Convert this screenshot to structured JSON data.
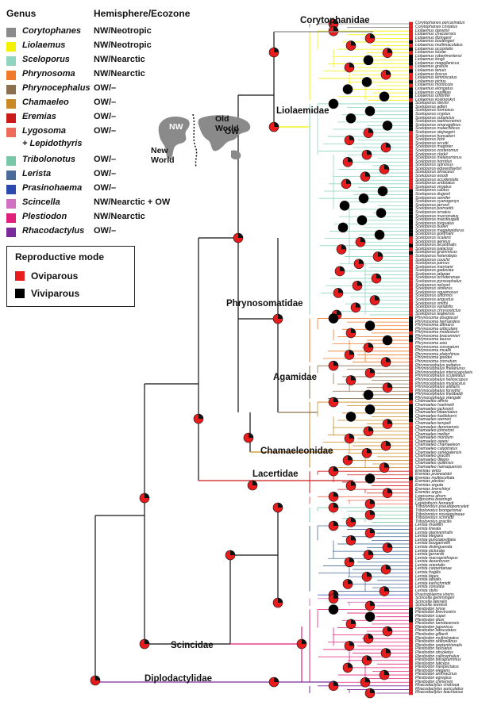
{
  "legend": {
    "genus_header": "Genus",
    "eco_header": "Hemisphere/Ecozone",
    "items": [
      {
        "genus": "Corytophanes",
        "eco": "NW/Neotropic",
        "color": "#8a8a8a"
      },
      {
        "genus": "Liolaemus",
        "eco": "NW/Neotropic",
        "color": "#f5f000"
      },
      {
        "genus": "Sceloporus",
        "eco": "NW/Nearctic",
        "color": "#8fd5c0"
      },
      {
        "genus": "Phrynosoma",
        "eco": "NW/Nearctic",
        "color": "#f07a2a"
      },
      {
        "genus": "Phrynocephalus",
        "eco": "OW/–",
        "color": "#8b7050"
      },
      {
        "genus": "Chamaeleo",
        "eco": "OW/–",
        "color": "#c98a25"
      },
      {
        "genus": "Eremias",
        "eco": "OW/–",
        "color": "#cc1a1a"
      },
      {
        "genus": "Lygosoma",
        "genus2": "+ Lepidothyris",
        "eco": "OW/–",
        "color": "#ee6a5a"
      },
      {
        "genus": "Tribolonotus",
        "eco": "OW/–",
        "color": "#78c8a8"
      },
      {
        "genus": "Lerista",
        "eco": "OW/–",
        "color": "#4a6c98"
      },
      {
        "genus": "Prasinohaema",
        "eco": "OW/–",
        "color": "#2a4ab0"
      },
      {
        "genus": "Scincella",
        "eco": "NW/Nearctic + OW",
        "color": "#d070c0"
      },
      {
        "genus": "Plestiodon",
        "eco": "NW/Nearctic",
        "color": "#e0207a"
      },
      {
        "genus": "Rhacodactylus",
        "eco": "OW/–",
        "color": "#7a2a9a"
      }
    ]
  },
  "reproductive_mode": {
    "title": "Reproductive mode",
    "oviparous": "Oviparous",
    "viviparous": "Viviparous",
    "ovi_color": "#e81c1c",
    "vivi_color": "#000000"
  },
  "map": {
    "nw": "NW",
    "new_world": "New\nWorld",
    "old_world": "Old World",
    "ow": "OW"
  },
  "families": {
    "corytophanidae": "Corytophanidae",
    "liolaemidae": "Liolaemidae",
    "phrynosomatidae": "Phrynosomatidae",
    "agamidae": "Agamidae",
    "chamaeleonidae": "Chamaeleonidae",
    "lacertidae": "Lacertidae",
    "scincidae": "Scincidae",
    "diplodactylidae": "Diplodactylidae"
  },
  "species": [
    {
      "n": "Corytophanes percarinatus",
      "g": 0,
      "m": 0
    },
    {
      "n": "Corytophanes cristatus",
      "g": 0,
      "m": 0
    },
    {
      "n": "Liolaemus darwinii",
      "g": 1,
      "m": 0
    },
    {
      "n": "Liolaemus chacoensis",
      "g": 1,
      "m": 0
    },
    {
      "n": "Liolaemus fitzingerii",
      "g": 1,
      "m": 0
    },
    {
      "n": "Liolaemus boulengeri",
      "g": 1,
      "m": 1
    },
    {
      "n": "Liolaemus multimaculatus",
      "g": 1,
      "m": 0
    },
    {
      "n": "Liolaemus occipitalis",
      "g": 1,
      "m": 1
    },
    {
      "n": "Liolaemus lutzae",
      "g": 1,
      "m": 0
    },
    {
      "n": "Liolaemus robertmertensi",
      "g": 1,
      "m": 1
    },
    {
      "n": "Liolaemus kingii",
      "g": 1,
      "m": 1
    },
    {
      "n": "Liolaemus magellanicus",
      "g": 1,
      "m": 1
    },
    {
      "n": "Liolaemus gracilis",
      "g": 1,
      "m": 0
    },
    {
      "n": "Liolaemus tenuis",
      "g": 1,
      "m": 1
    },
    {
      "n": "Liolaemus fuscus",
      "g": 1,
      "m": 0
    },
    {
      "n": "Liolaemus lemniscatus",
      "g": 1,
      "m": 0
    },
    {
      "n": "Liolaemus pictus",
      "g": 1,
      "m": 1
    },
    {
      "n": "Liolaemus monticola",
      "g": 1,
      "m": 0
    },
    {
      "n": "Liolaemus elongatus",
      "g": 1,
      "m": 1
    },
    {
      "n": "Liolaemus capillitas",
      "g": 1,
      "m": 1
    },
    {
      "n": "Liolaemus umbrifer",
      "g": 1,
      "m": 1
    },
    {
      "n": "Liolaemus koslowskyi",
      "g": 1,
      "m": 0
    },
    {
      "n": "Sceloporus slevini",
      "g": 2,
      "m": 1
    },
    {
      "n": "Sceloporus adleri",
      "g": 2,
      "m": 1
    },
    {
      "n": "Sceloporus formosus",
      "g": 2,
      "m": 1
    },
    {
      "n": "Sceloporus cryptus",
      "g": 2,
      "m": 1
    },
    {
      "n": "Sceloporus subpictus",
      "g": 2,
      "m": 1
    },
    {
      "n": "Sceloporus taeniocnemis",
      "g": 2,
      "m": 1
    },
    {
      "n": "Sceloporus smaragdinus",
      "g": 2,
      "m": 1
    },
    {
      "n": "Sceloporus malachiticus",
      "g": 2,
      "m": 1
    },
    {
      "n": "Sceloporus stejnegeri",
      "g": 2,
      "m": 0
    },
    {
      "n": "Sceloporus hunsakeri",
      "g": 2,
      "m": 0
    },
    {
      "n": "Sceloporus lickii",
      "g": 2,
      "m": 0
    },
    {
      "n": "Sceloporus orcutti",
      "g": 2,
      "m": 0
    },
    {
      "n": "Sceloporus magister",
      "g": 2,
      "m": 0
    },
    {
      "n": "Sceloporus zosteromus",
      "g": 2,
      "m": 0
    },
    {
      "n": "Sceloporus clarkii",
      "g": 2,
      "m": 0
    },
    {
      "n": "Sceloporus melanorhinus",
      "g": 2,
      "m": 0
    },
    {
      "n": "Sceloporus horridus",
      "g": 2,
      "m": 0
    },
    {
      "n": "Sceloporus spinosus",
      "g": 2,
      "m": 0
    },
    {
      "n": "Sceloporus edwardtaylori",
      "g": 2,
      "m": 0
    },
    {
      "n": "Sceloporus olivaceus",
      "g": 2,
      "m": 0
    },
    {
      "n": "Sceloporus woodi",
      "g": 2,
      "m": 0
    },
    {
      "n": "Sceloporus occidentalis",
      "g": 2,
      "m": 0
    },
    {
      "n": "Sceloporus undulatus",
      "g": 2,
      "m": 0
    },
    {
      "n": "Sceloporus virgatus",
      "g": 2,
      "m": 0
    },
    {
      "n": "Sceloporus cautus",
      "g": 2,
      "m": 1
    },
    {
      "n": "Sceloporus dugesii",
      "g": 2,
      "m": 1
    },
    {
      "n": "Sceloporus semifer",
      "g": 2,
      "m": 1
    },
    {
      "n": "Sceloporus cyanogenys",
      "g": 2,
      "m": 1
    },
    {
      "n": "Sceloporus jarrovii",
      "g": 2,
      "m": 1
    },
    {
      "n": "Sceloporus poinsettii",
      "g": 2,
      "m": 1
    },
    {
      "n": "Sceloporus ornatus",
      "g": 2,
      "m": 1
    },
    {
      "n": "Sceloporus mucronatus",
      "g": 2,
      "m": 1
    },
    {
      "n": "Sceloporus macdougalli",
      "g": 2,
      "m": 1
    },
    {
      "n": "Sceloporus torquatus",
      "g": 2,
      "m": 1
    },
    {
      "n": "Sceloporus bulleri",
      "g": 2,
      "m": 1
    },
    {
      "n": "Sceloporus megalepidurus",
      "g": 2,
      "m": 1
    },
    {
      "n": "Sceloporus goldmani",
      "g": 2,
      "m": 1
    },
    {
      "n": "Sceloporus scalaris",
      "g": 2,
      "m": 0
    },
    {
      "n": "Sceloporus aeneus",
      "g": 2,
      "m": 0
    },
    {
      "n": "Sceloporus bicanthalis",
      "g": 2,
      "m": 1
    },
    {
      "n": "Sceloporus palaciosi",
      "g": 2,
      "m": 0
    },
    {
      "n": "Sceloporus grammicus",
      "g": 2,
      "m": 1
    },
    {
      "n": "Sceloporus heterolepis",
      "g": 2,
      "m": 0
    },
    {
      "n": "Sceloporus couchii",
      "g": 2,
      "m": 0
    },
    {
      "n": "Sceloporus parvus",
      "g": 2,
      "m": 0
    },
    {
      "n": "Sceloporus merriami",
      "g": 2,
      "m": 0
    },
    {
      "n": "Sceloporus gadoviae",
      "g": 2,
      "m": 0
    },
    {
      "n": "Sceloporus jalapae",
      "g": 2,
      "m": 0
    },
    {
      "n": "Sceloporus ochoterenae",
      "g": 2,
      "m": 0
    },
    {
      "n": "Sceloporus pyrocephalus",
      "g": 2,
      "m": 0
    },
    {
      "n": "Sceloporus nelsoni",
      "g": 2,
      "m": 0
    },
    {
      "n": "Sceloporus siniferus",
      "g": 2,
      "m": 0
    },
    {
      "n": "Sceloporus squamosus",
      "g": 2,
      "m": 0
    },
    {
      "n": "Sceloporus utiformis",
      "g": 2,
      "m": 0
    },
    {
      "n": "Sceloporus angustus",
      "g": 2,
      "m": 0
    },
    {
      "n": "Sceloporus smithi",
      "g": 2,
      "m": 0
    },
    {
      "n": "Sceloporus variabilis",
      "g": 2,
      "m": 0
    },
    {
      "n": "Sceloporus chrysostictus",
      "g": 2,
      "m": 0
    },
    {
      "n": "Sceloporus teapensis",
      "g": 2,
      "m": 0
    },
    {
      "n": "Phrynosoma douglassii",
      "g": 3,
      "m": 1
    },
    {
      "n": "Phrynosoma hernandesi",
      "g": 3,
      "m": 1
    },
    {
      "n": "Phrynosoma ditmarsi",
      "g": 3,
      "m": 1
    },
    {
      "n": "Phrynosoma orbiculare",
      "g": 3,
      "m": 1
    },
    {
      "n": "Phrynosoma modestum",
      "g": 3,
      "m": 0
    },
    {
      "n": "Phrynosoma braconnieri",
      "g": 3,
      "m": 1
    },
    {
      "n": "Phrynosoma taurus",
      "g": 3,
      "m": 1
    },
    {
      "n": "Phrynosoma asio",
      "g": 3,
      "m": 0
    },
    {
      "n": "Phrynosoma coronatum",
      "g": 3,
      "m": 0
    },
    {
      "n": "Phrynosoma mcallii",
      "g": 3,
      "m": 0
    },
    {
      "n": "Phrynosoma platyrhinos",
      "g": 3,
      "m": 0
    },
    {
      "n": "Phrynosoma goodei",
      "g": 3,
      "m": 0
    },
    {
      "n": "Phrynosoma cornutum",
      "g": 3,
      "m": 0
    },
    {
      "n": "Phrynocephalus guttatus",
      "g": 4,
      "m": 0
    },
    {
      "n": "Phrynocephalus melanurus",
      "g": 4,
      "m": 0
    },
    {
      "n": "Phrynocephalus interscapularis",
      "g": 4,
      "m": 0
    },
    {
      "n": "Phrynocephalus scutellatus",
      "g": 4,
      "m": 0
    },
    {
      "n": "Phrynocephalus helioscopus",
      "g": 4,
      "m": 0
    },
    {
      "n": "Phrynocephalus mystaceus",
      "g": 4,
      "m": 0
    },
    {
      "n": "Phrynocephalus axillaris",
      "g": 4,
      "m": 0
    },
    {
      "n": "Phrynocephalus forsythii",
      "g": 4,
      "m": 0
    },
    {
      "n": "Phrynocephalus theobaldi",
      "g": 4,
      "m": 1
    },
    {
      "n": "Phrynocephalus vlangalii",
      "g": 4,
      "m": 1
    },
    {
      "n": "Chamaeleo affinis",
      "g": 5,
      "m": 0
    },
    {
      "n": "Chamaeleo hoehnelii",
      "g": 5,
      "m": 1
    },
    {
      "n": "Chamaeleo jacksonii",
      "g": 5,
      "m": 1
    },
    {
      "n": "Chamaeleo bitaeniatus",
      "g": 5,
      "m": 1
    },
    {
      "n": "Chamaeleo fuelleborni",
      "g": 5,
      "m": 1
    },
    {
      "n": "Chamaeleo werneri",
      "g": 5,
      "m": 1
    },
    {
      "n": "Chamaeleo tempeli",
      "g": 5,
      "m": 0
    },
    {
      "n": "Chamaeleo deremensis",
      "g": 5,
      "m": 0
    },
    {
      "n": "Chamaeleo johnstoni",
      "g": 5,
      "m": 0
    },
    {
      "n": "Chamaeleo melleri",
      "g": 5,
      "m": 0
    },
    {
      "n": "Chamaeleo montium",
      "g": 5,
      "m": 0
    },
    {
      "n": "Chamaeleo oweni",
      "g": 5,
      "m": 0
    },
    {
      "n": "Chamaeleo chamaeleon",
      "g": 5,
      "m": 0
    },
    {
      "n": "Chamaeleo calyptratus",
      "g": 5,
      "m": 0
    },
    {
      "n": "Chamaeleo senegalensis",
      "g": 5,
      "m": 0
    },
    {
      "n": "Chamaeleo gracilis",
      "g": 5,
      "m": 0
    },
    {
      "n": "Chamaeleo dilepis",
      "g": 5,
      "m": 0
    },
    {
      "n": "Chamaeleo quilensis",
      "g": 5,
      "m": 0
    },
    {
      "n": "Chamaeleo namaquensis",
      "g": 5,
      "m": 0
    },
    {
      "n": "Eremias velox",
      "g": 6,
      "m": 0
    },
    {
      "n": "Eremias przewalskii",
      "g": 6,
      "m": 0
    },
    {
      "n": "Eremias multiocellata",
      "g": 6,
      "m": 1
    },
    {
      "n": "Eremias pleskei",
      "g": 6,
      "m": 0
    },
    {
      "n": "Eremias arguta",
      "g": 6,
      "m": 0
    },
    {
      "n": "Eremias brenchleyi",
      "g": 6,
      "m": 0
    },
    {
      "n": "Eremias argus",
      "g": 6,
      "m": 0
    },
    {
      "n": "Lygosoma afrum",
      "g": 7,
      "m": 0
    },
    {
      "n": "Lygosoma bowringii",
      "g": 7,
      "m": 0
    },
    {
      "n": "Lepidothyris fernandi",
      "g": 7,
      "m": 0
    },
    {
      "n": "Tribolonotus pseudoponceleti",
      "g": 8,
      "m": 0
    },
    {
      "n": "Tribolonotus brongersmai",
      "g": 8,
      "m": 0
    },
    {
      "n": "Tribolonotus novaeguineae",
      "g": 8,
      "m": 0
    },
    {
      "n": "Tribolonotus schmidti",
      "g": 8,
      "m": 0
    },
    {
      "n": "Tribolonotus gracilis",
      "g": 8,
      "m": 0
    },
    {
      "n": "Lerista muelleri",
      "g": 9,
      "m": 0
    },
    {
      "n": "Lerista lineata",
      "g": 9,
      "m": 0
    },
    {
      "n": "Lerista planiventralis",
      "g": 9,
      "m": 0
    },
    {
      "n": "Lerista elegans",
      "g": 9,
      "m": 0
    },
    {
      "n": "Lerista punctatovittata",
      "g": 9,
      "m": 0
    },
    {
      "n": "Lerista bougainvillii",
      "g": 9,
      "m": 0
    },
    {
      "n": "Lerista distinguenda",
      "g": 9,
      "m": 0
    },
    {
      "n": "Lerista picturata",
      "g": 9,
      "m": 0
    },
    {
      "n": "Lerista gerrardii",
      "g": 9,
      "m": 0
    },
    {
      "n": "Lerista macropisthopus",
      "g": 9,
      "m": 0
    },
    {
      "n": "Lerista desertorum",
      "g": 9,
      "m": 0
    },
    {
      "n": "Lerista orientalis",
      "g": 9,
      "m": 0
    },
    {
      "n": "Lerista carpentariae",
      "g": 9,
      "m": 0
    },
    {
      "n": "Lerista fragilis",
      "g": 9,
      "m": 0
    },
    {
      "n": "Lerista bipes",
      "g": 9,
      "m": 0
    },
    {
      "n": "Lerista labialis",
      "g": 9,
      "m": 0
    },
    {
      "n": "Lerista karlschmidti",
      "g": 9,
      "m": 0
    },
    {
      "n": "Lerista zonulata",
      "g": 9,
      "m": 0
    },
    {
      "n": "Lerista stylis",
      "g": 9,
      "m": 0
    },
    {
      "n": "Prasinohaema virens",
      "g": 10,
      "m": 0
    },
    {
      "n": "Scincella gemmingeri",
      "g": 11,
      "m": 0
    },
    {
      "n": "Scincella lateralis",
      "g": 11,
      "m": 0
    },
    {
      "n": "Scincella reevesii",
      "g": 11,
      "m": 0
    },
    {
      "n": "Plestiodon lynxe",
      "g": 12,
      "m": 1
    },
    {
      "n": "Plestiodon brevirostris",
      "g": 12,
      "m": 1
    },
    {
      "n": "Plestiodon copei",
      "g": 12,
      "m": 1
    },
    {
      "n": "Plestiodon dicei",
      "g": 12,
      "m": 1
    },
    {
      "n": "Plestiodon tamdaoensis",
      "g": 12,
      "m": 0
    },
    {
      "n": "Plestiodon japonicus",
      "g": 12,
      "m": 0
    },
    {
      "n": "Plestiodon latiscutatus",
      "g": 12,
      "m": 0
    },
    {
      "n": "Plestiodon gilberti",
      "g": 12,
      "m": 0
    },
    {
      "n": "Plestiodon multivirgatus",
      "g": 12,
      "m": 0
    },
    {
      "n": "Plestiodon skiltonianus",
      "g": 12,
      "m": 0
    },
    {
      "n": "Plestiodon septentrionalis",
      "g": 12,
      "m": 0
    },
    {
      "n": "Plestiodon fasciatus",
      "g": 12,
      "m": 0
    },
    {
      "n": "Plestiodon obsoletus",
      "g": 12,
      "m": 0
    },
    {
      "n": "Plestiodon callicephalus",
      "g": 12,
      "m": 0
    },
    {
      "n": "Plestiodon tetragrammus",
      "g": 12,
      "m": 0
    },
    {
      "n": "Plestiodon laticeps",
      "g": 12,
      "m": 0
    },
    {
      "n": "Plestiodon inexpectatus",
      "g": 12,
      "m": 0
    },
    {
      "n": "Plestiodon elegans",
      "g": 12,
      "m": 0
    },
    {
      "n": "Plestiodon anthracinus",
      "g": 12,
      "m": 0
    },
    {
      "n": "Plestiodon egregius",
      "g": 12,
      "m": 0
    },
    {
      "n": "Plestiodon chinensis",
      "g": 12,
      "m": 0
    },
    {
      "n": "Rhacodactylus chahoua",
      "g": 13,
      "m": 0
    },
    {
      "n": "Rhacodactylus auriculatus",
      "g": 13,
      "m": 0
    },
    {
      "n": "Rhacodactylus leachianus",
      "g": 13,
      "m": 0
    }
  ]
}
